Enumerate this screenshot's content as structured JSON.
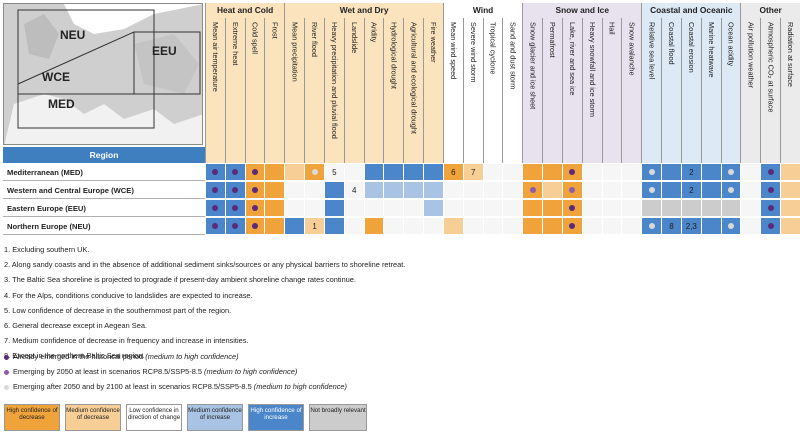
{
  "colors": {
    "high_decrease": "#f0a33a",
    "medium_decrease": "#f7cf96",
    "low_confidence": "#ffffff",
    "medium_increase": "#a8c3e3",
    "high_increase": "#4a86c9",
    "not_relevant": "#cccccc",
    "dot_historical": "#5b2a7a",
    "dot_2050": "#8e5ca8",
    "dot_2100": "#d9d9d9"
  },
  "map": {
    "labels": [
      "NEU",
      "EEU",
      "WCE",
      "MED"
    ]
  },
  "header": {
    "region_label": "Region",
    "groups": [
      {
        "label": "Heat and Cold",
        "bg": "#fbe3bd"
      },
      {
        "label": "Wet and Dry",
        "bg": "#fbe3bd"
      },
      {
        "label": "Wind",
        "bg": "#ffffff"
      },
      {
        "label": "Snow and Ice",
        "bg": "#e7e2ee"
      },
      {
        "label": "Coastal and Oceanic",
        "bg": "#dde9f5"
      },
      {
        "label": "Other",
        "bg": "#ebebeb"
      }
    ],
    "columns": [
      "Mean air temperature",
      "Extreme heat",
      "Cold spell",
      "Frost",
      "Mean precipitation",
      "River flood",
      "Heavy precipitation and pluvial flood",
      "Landslide",
      "Aridity",
      "Hydrological drought",
      "Agricultural and ecological drought",
      "Fire weather",
      "Mean wind speed",
      "Severe wind storm",
      "Tropical cyclone",
      "Sand and dust storm",
      "Snow glacier and ice sheet",
      "Permafrost",
      "Lake, river and sea ice",
      "Heavy snowfall and ice storm",
      "Hail",
      "Snow avalanche",
      "Relative sea level",
      "Coastal flood",
      "Coastal erosion",
      "Marine heatwave",
      "Ocean acidity",
      "Air pollution weather",
      "Atmospheric CO₂ at surface",
      "Radiation at surface"
    ]
  },
  "rows": [
    {
      "label": "Mediterranean (MED)",
      "cells": [
        "hi:h",
        "hi:h",
        "hd:h",
        "hd",
        "md",
        "hd:l",
        "lc:5",
        "lc",
        "hi",
        "hi",
        "hi",
        "hi",
        "hd:6",
        "md:7",
        "lc",
        "lc",
        "hd",
        "hd",
        "hd:h",
        "lc",
        "lc",
        "lc",
        "hi:l",
        "hi",
        "hi:2",
        "hi",
        "hi:l",
        "lc",
        "hi:h",
        "md"
      ]
    },
    {
      "label": "Western and Central Europe (WCE)",
      "cells": [
        "hi:h",
        "hi:h",
        "hd:h",
        "hd",
        "lc",
        "lc",
        "hi",
        "lc:4",
        "mi",
        "mi",
        "mi",
        "mi",
        "lc",
        "lc",
        "lc",
        "lc",
        "hd:m",
        "md",
        "hd:m",
        "lc",
        "lc",
        "lc",
        "hi:l",
        "hi",
        "hi:2",
        "hi",
        "hi:l",
        "lc",
        "hi:h",
        "md"
      ]
    },
    {
      "label": "Eastern Europe (EEU)",
      "cells": [
        "hi:h",
        "hi:h",
        "hd:h",
        "hd",
        "lc",
        "lc",
        "hi",
        "lc",
        "lc",
        "lc",
        "lc",
        "mi",
        "lc",
        "lc",
        "lc",
        "lc",
        "hd",
        "hd",
        "hd:h",
        "lc",
        "lc",
        "lc",
        "nr",
        "nr",
        "nr",
        "nr",
        "nr",
        "lc",
        "hi:h",
        "md"
      ]
    },
    {
      "label": "Northern Europe (NEU)",
      "cells": [
        "hi:h",
        "hi:h",
        "hd:h",
        "hd",
        "hi",
        "md:1",
        "hi",
        "lc",
        "hd",
        "lc",
        "lc",
        "lc",
        "md",
        "lc",
        "lc",
        "lc",
        "hd",
        "hd",
        "hd:h",
        "lc",
        "lc",
        "lc",
        "hi:l",
        "hi:8",
        "hi:2,3",
        "hi",
        "hi:l",
        "lc",
        "hi:h",
        "md"
      ]
    }
  ],
  "footnotes": [
    "1. Excluding southern UK.",
    "2. Along sandy coasts and in the absence of additional sediment sinks/sources or any physical barriers to shoreline retreat.",
    "3. The Baltic Sea shoreline is projected to prograde if present-day ambient shoreline change rates continue.",
    "4. For the Alps, conditions conducive to landslides are expected to increase.",
    "5. Low confidence of decrease in the southernmost part of the region.",
    "6. General decrease except in Aegean Sea.",
    "7. Medium confidence of decrease in frequency and increase in intensities.",
    "8. Except in the northern Baltic Sea region."
  ],
  "dot_legend": [
    {
      "text": "Already emerged in the historical period ",
      "ital": "(medium to high confidence)",
      "color": "#5b2a7a"
    },
    {
      "text": "Emerging by 2050 at least in scenarios RCP8.5/SSP5-8.5 ",
      "ital": "(medium to high confidence)",
      "color": "#8e5ca8"
    },
    {
      "text": "Emerging after 2050 and by 2100 at least in scenarios RCP8.5/SSP5-8.5 ",
      "ital": "(medium to high confidence)",
      "color": "#d9d9d9"
    }
  ],
  "legend": [
    {
      "label": "High confidence of decrease",
      "bg": "#f0a33a",
      "fg": "#222"
    },
    {
      "label": "Medium confidence of decrease",
      "bg": "#f7cf96",
      "fg": "#222"
    },
    {
      "label": "Low confidence in direction of change",
      "bg": "#ffffff",
      "fg": "#222"
    },
    {
      "label": "Medium confidence of increase",
      "bg": "#a8c3e3",
      "fg": "#222"
    },
    {
      "label": "High confidence of increase",
      "bg": "#4a86c9",
      "fg": "#fff"
    },
    {
      "label": "Not broadly relevant",
      "bg": "#cccccc",
      "fg": "#222"
    }
  ]
}
